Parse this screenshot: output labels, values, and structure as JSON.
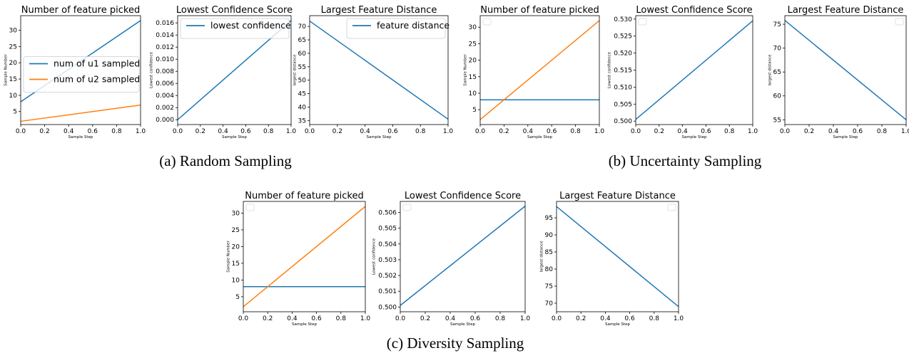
{
  "captions": {
    "a": "(a) Random Sampling",
    "b": "(b) Uncertainty Sampling",
    "c": "(c) Diversity Sampling"
  },
  "colors": {
    "series1": "#1f77b4",
    "series2": "#ff7f0e"
  },
  "chart_data": [
    {
      "type": "line",
      "group": "a",
      "title": "Number of feature picked",
      "xlabel": "Sample Step",
      "ylabel": "Sample Number",
      "xlim": [
        0.0,
        1.0
      ],
      "ylim": [
        1.0,
        34.5
      ],
      "xticks": [
        0.0,
        0.2,
        0.4,
        0.6,
        0.8,
        1.0
      ],
      "xtick_labels": [
        "0.0",
        "0.2",
        "0.4",
        "0.6",
        "0.8",
        "1.0"
      ],
      "yticks": [
        5,
        10,
        15,
        20,
        25,
        30
      ],
      "ytick_labels": [
        "5",
        "10",
        "15",
        "20",
        "25",
        "30"
      ],
      "legend": "center-left",
      "legend_box": true,
      "series": [
        {
          "name": "num of u1 sampled",
          "x": [
            0,
            1
          ],
          "values": [
            8,
            33
          ],
          "color": "#1f77b4"
        },
        {
          "name": "num of u2 sampled",
          "x": [
            0,
            1
          ],
          "values": [
            2,
            7
          ],
          "color": "#ff7f0e"
        }
      ]
    },
    {
      "type": "line",
      "group": "a",
      "title": "Lowest Confidence Score",
      "xlabel": "Sample Step",
      "ylabel": "Lowest confidence",
      "xlim": [
        0.0,
        1.0
      ],
      "ylim": [
        -0.0008,
        0.0172
      ],
      "xticks": [
        0.0,
        0.2,
        0.4,
        0.6,
        0.8,
        1.0
      ],
      "xtick_labels": [
        "0.0",
        "0.2",
        "0.4",
        "0.6",
        "0.8",
        "1.0"
      ],
      "yticks": [
        0,
        0.002,
        0.004,
        0.006,
        0.008,
        0.01,
        0.012,
        0.014,
        0.016
      ],
      "ytick_labels": [
        "0.000",
        "0.002",
        "0.004",
        "0.006",
        "0.008",
        "0.010",
        "0.012",
        "0.014",
        "0.016"
      ],
      "legend": "top-left",
      "legend_box": true,
      "series": [
        {
          "name": "lowest confidence",
          "x": [
            0,
            1
          ],
          "values": [
            0.0,
            0.0164
          ],
          "color": "#1f77b4"
        }
      ]
    },
    {
      "type": "line",
      "group": "a",
      "title": "Largest Feature Distance",
      "xlabel": "Sample Step",
      "ylabel": "largest distance",
      "xlim": [
        0.0,
        1.0
      ],
      "ylim": [
        33.5,
        74.0
      ],
      "xticks": [
        0.0,
        0.2,
        0.4,
        0.6,
        0.8,
        1.0
      ],
      "xtick_labels": [
        "0.0",
        "0.2",
        "0.4",
        "0.6",
        "0.8",
        "1.0"
      ],
      "yticks": [
        35,
        40,
        45,
        50,
        55,
        60,
        65,
        70
      ],
      "ytick_labels": [
        "35",
        "40",
        "45",
        "50",
        "55",
        "60",
        "65",
        "70"
      ],
      "legend": "top-right",
      "legend_box": true,
      "series": [
        {
          "name": "feature distance",
          "x": [
            0,
            1
          ],
          "values": [
            72,
            35.5
          ],
          "color": "#1f77b4"
        }
      ]
    },
    {
      "type": "line",
      "group": "b",
      "title": "Number of feature picked",
      "xlabel": "Sample Step",
      "ylabel": "Sample Number",
      "xlim": [
        0.0,
        1.0
      ],
      "ylim": [
        0.5,
        33.5
      ],
      "xticks": [
        0.0,
        0.2,
        0.4,
        0.6,
        0.8,
        1.0
      ],
      "xtick_labels": [
        "0.0",
        "0.2",
        "0.4",
        "0.6",
        "0.8",
        "1.0"
      ],
      "yticks": [
        5,
        10,
        15,
        20,
        25,
        30
      ],
      "ytick_labels": [
        "5",
        "10",
        "15",
        "20",
        "25",
        "30"
      ],
      "legend": "top-left",
      "legend_box": true,
      "series": [
        {
          "x": [
            0,
            1
          ],
          "values": [
            8,
            8
          ],
          "color": "#1f77b4"
        },
        {
          "x": [
            0,
            1
          ],
          "values": [
            2,
            32
          ],
          "color": "#ff7f0e"
        }
      ]
    },
    {
      "type": "line",
      "group": "b",
      "title": "Lowest Confidence Score",
      "xlabel": "Sample Step",
      "ylabel": "Lowest confidence",
      "xlim": [
        0.0,
        1.0
      ],
      "ylim": [
        0.499,
        0.531
      ],
      "xticks": [
        0.0,
        0.2,
        0.4,
        0.6,
        0.8,
        1.0
      ],
      "xtick_labels": [
        "0.0",
        "0.2",
        "0.4",
        "0.6",
        "0.8",
        "1.0"
      ],
      "yticks": [
        0.5,
        0.505,
        0.51,
        0.515,
        0.52,
        0.525,
        0.53
      ],
      "ytick_labels": [
        "0.500",
        "0.505",
        "0.510",
        "0.515",
        "0.520",
        "0.525",
        "0.530"
      ],
      "legend": "top-left",
      "legend_box": true,
      "series": [
        {
          "x": [
            0,
            1
          ],
          "values": [
            0.5005,
            0.5295
          ],
          "color": "#1f77b4"
        }
      ]
    },
    {
      "type": "line",
      "group": "b",
      "title": "Largest Feature Distance",
      "xlabel": "Sample Step",
      "ylabel": "largest distance",
      "xlim": [
        0.0,
        1.0
      ],
      "ylim": [
        54.0,
        76.8
      ],
      "xticks": [
        0.0,
        0.2,
        0.4,
        0.6,
        0.8,
        1.0
      ],
      "xtick_labels": [
        "0.0",
        "0.2",
        "0.4",
        "0.6",
        "0.8",
        "1.0"
      ],
      "yticks": [
        55,
        60,
        65,
        70,
        75
      ],
      "ytick_labels": [
        "55",
        "60",
        "65",
        "70",
        "75"
      ],
      "legend": "top-right",
      "legend_box": true,
      "series": [
        {
          "x": [
            0,
            1
          ],
          "values": [
            75.8,
            55
          ],
          "color": "#1f77b4"
        }
      ]
    },
    {
      "type": "line",
      "group": "c",
      "title": "Number of feature picked",
      "xlabel": "Sample Step",
      "ylabel": "Sample Number",
      "xlim": [
        0.0,
        1.0
      ],
      "ylim": [
        0.5,
        33.5
      ],
      "xticks": [
        0.0,
        0.2,
        0.4,
        0.6,
        0.8,
        1.0
      ],
      "xtick_labels": [
        "0.0",
        "0.2",
        "0.4",
        "0.6",
        "0.8",
        "1.0"
      ],
      "yticks": [
        5,
        10,
        15,
        20,
        25,
        30
      ],
      "ytick_labels": [
        "5",
        "10",
        "15",
        "20",
        "25",
        "30"
      ],
      "legend": "top-left",
      "legend_box": true,
      "series": [
        {
          "x": [
            0,
            1
          ],
          "values": [
            8,
            8
          ],
          "color": "#1f77b4"
        },
        {
          "x": [
            0,
            1
          ],
          "values": [
            2,
            32
          ],
          "color": "#ff7f0e"
        }
      ]
    },
    {
      "type": "line",
      "group": "c",
      "title": "Lowest Confidence Score",
      "xlabel": "Sample Step",
      "ylabel": "Lowest confidence",
      "xlim": [
        0.0,
        1.0
      ],
      "ylim": [
        0.4997,
        0.5067
      ],
      "xticks": [
        0.0,
        0.2,
        0.4,
        0.6,
        0.8,
        1.0
      ],
      "xtick_labels": [
        "0.0",
        "0.2",
        "0.4",
        "0.6",
        "0.8",
        "1.0"
      ],
      "yticks": [
        0.5,
        0.501,
        0.502,
        0.503,
        0.504,
        0.505,
        0.506
      ],
      "ytick_labels": [
        "0.500",
        "0.501",
        "0.502",
        "0.503",
        "0.504",
        "0.505",
        "0.506"
      ],
      "legend": "top-left",
      "legend_box": true,
      "series": [
        {
          "x": [
            0,
            1
          ],
          "values": [
            0.5001,
            0.5064
          ],
          "color": "#1f77b4"
        }
      ]
    },
    {
      "type": "line",
      "group": "c",
      "title": "Largest Feature Distance",
      "xlabel": "Sample Step",
      "ylabel": "largest distance",
      "xlim": [
        0.0,
        1.0
      ],
      "ylim": [
        67.5,
        99.8
      ],
      "xticks": [
        0.0,
        0.2,
        0.4,
        0.6,
        0.8,
        1.0
      ],
      "xtick_labels": [
        "0.0",
        "0.2",
        "0.4",
        "0.6",
        "0.8",
        "1.0"
      ],
      "yticks": [
        70,
        75,
        80,
        85,
        90,
        95
      ],
      "ytick_labels": [
        "70",
        "75",
        "80",
        "85",
        "90",
        "95"
      ],
      "legend": "top-right",
      "legend_box": true,
      "series": [
        {
          "x": [
            0,
            1
          ],
          "values": [
            98.3,
            69
          ],
          "color": "#1f77b4"
        }
      ]
    }
  ]
}
